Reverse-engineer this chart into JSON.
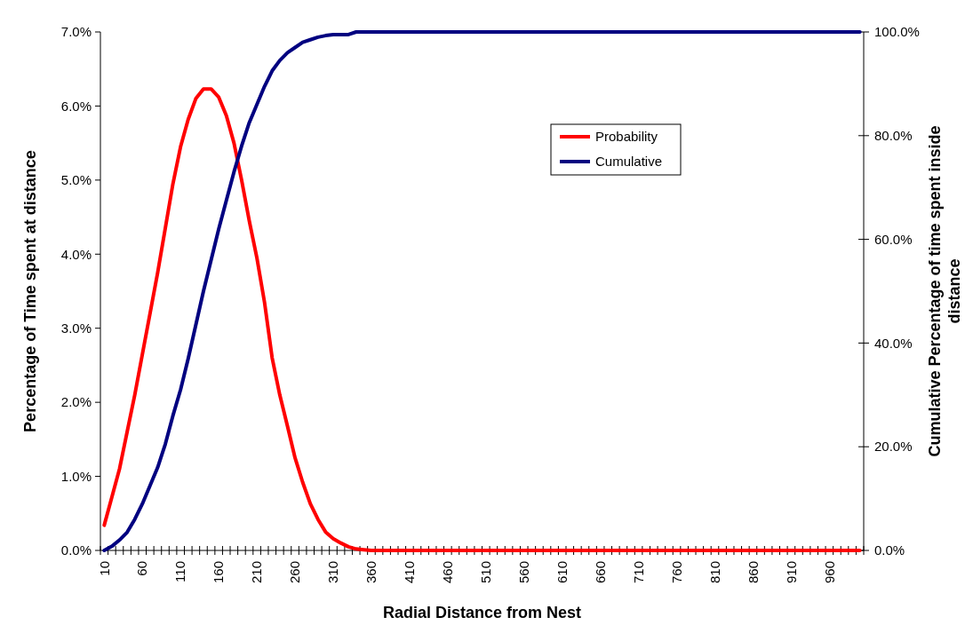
{
  "chart_data": {
    "type": "line",
    "xlabel": "Radial Distance from Nest",
    "ylabel": "Percentage of Time spent at distance",
    "y2label": "Cumulative Percentage of time spent inside distance",
    "categories": [
      "10",
      null,
      null,
      null,
      null,
      "60",
      null,
      null,
      null,
      null,
      "110",
      null,
      null,
      null,
      null,
      "160",
      null,
      null,
      null,
      null,
      "210",
      null,
      null,
      null,
      null,
      "260",
      null,
      null,
      null,
      null,
      "310",
      null,
      null,
      null,
      null,
      "360",
      null,
      null,
      null,
      null,
      "410",
      null,
      null,
      null,
      null,
      "460",
      null,
      null,
      null,
      null,
      "510",
      null,
      null,
      null,
      null,
      "560",
      null,
      null,
      null,
      null,
      "610",
      null,
      null,
      null,
      null,
      "660",
      null,
      null,
      null,
      null,
      "710",
      null,
      null,
      null,
      null,
      "760",
      null,
      null,
      null,
      null,
      "810",
      null,
      null,
      null,
      null,
      "860",
      null,
      null,
      null,
      null,
      "910",
      null,
      null,
      null,
      null,
      "960",
      null,
      null,
      null,
      null
    ],
    "series": [
      {
        "name": "Probability",
        "color": "#ff0000",
        "values": [
          0.34,
          0.72,
          1.1,
          1.6,
          2.1,
          2.65,
          3.2,
          3.75,
          4.35,
          4.95,
          5.45,
          5.82,
          6.1,
          6.23,
          6.23,
          6.12,
          5.87,
          5.5,
          5.0,
          4.45,
          3.95,
          3.35,
          2.6,
          2.1,
          1.68,
          1.25,
          0.92,
          0.63,
          0.42,
          0.25,
          0.16,
          0.1,
          0.05,
          0.02,
          0.01,
          0,
          0,
          0,
          0,
          0,
          0,
          0,
          0,
          0,
          0,
          0,
          0,
          0,
          0,
          0,
          0,
          0,
          0,
          0,
          0,
          0,
          0,
          0,
          0,
          0,
          0,
          0,
          0,
          0,
          0,
          0,
          0,
          0,
          0,
          0,
          0,
          0,
          0,
          0,
          0,
          0,
          0,
          0,
          0,
          0,
          0,
          0,
          0,
          0,
          0,
          0,
          0,
          0,
          0,
          0,
          0,
          0,
          0,
          0,
          0,
          0,
          0,
          0,
          0,
          0
        ]
      },
      {
        "name": "Cumulative",
        "color": "#000080",
        "axis": "y2",
        "values": [
          0,
          0.8,
          2,
          3.5,
          6,
          9,
          12.5,
          16,
          20.5,
          26,
          31,
          37,
          43.5,
          50,
          56,
          62,
          67.5,
          73,
          78,
          82.5,
          86,
          89.5,
          92.5,
          94.5,
          96,
          97,
          98,
          98.5,
          99,
          99.3,
          99.5,
          99.5,
          99.5,
          100,
          100,
          100,
          100,
          100,
          100,
          100,
          100,
          100,
          100,
          100,
          100,
          100,
          100,
          100,
          100,
          100,
          100,
          100,
          100,
          100,
          100,
          100,
          100,
          100,
          100,
          100,
          100,
          100,
          100,
          100,
          100,
          100,
          100,
          100,
          100,
          100,
          100,
          100,
          100,
          100,
          100,
          100,
          100,
          100,
          100,
          100,
          100,
          100,
          100,
          100,
          100,
          100,
          100,
          100,
          100,
          100,
          100,
          100,
          100,
          100,
          100,
          100,
          100,
          100,
          100,
          100
        ]
      }
    ],
    "ylim": [
      0,
      7
    ],
    "yticks": [
      {
        "value": 0,
        "label": "0.0%"
      },
      {
        "value": 1,
        "label": "1.0%"
      },
      {
        "value": 2,
        "label": "2.0%"
      },
      {
        "value": 3,
        "label": "3.0%"
      },
      {
        "value": 4,
        "label": "4.0%"
      },
      {
        "value": 5,
        "label": "5.0%"
      },
      {
        "value": 6,
        "label": "6.0%"
      },
      {
        "value": 7,
        "label": "7.0%"
      }
    ],
    "y2lim": [
      0,
      100
    ],
    "y2ticks": [
      {
        "value": 0,
        "label": "0.0%"
      },
      {
        "value": 20,
        "label": "20.0%"
      },
      {
        "value": 40,
        "label": "40.0%"
      },
      {
        "value": 60,
        "label": "60.0%"
      },
      {
        "value": 80,
        "label": "80.0%"
      },
      {
        "value": 100,
        "label": "100.0%"
      }
    ],
    "legend": "top right",
    "grid": false,
    "marker": "none",
    "line_style": "solid"
  }
}
